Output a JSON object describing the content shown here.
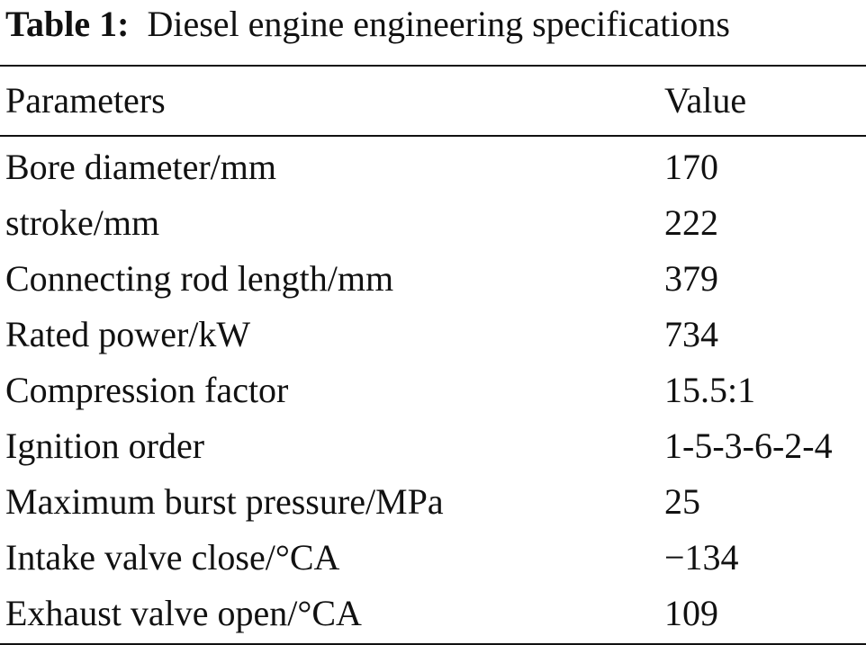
{
  "caption": {
    "label": "Table 1:",
    "title": "Diesel engine engineering specifications"
  },
  "table": {
    "headers": {
      "parameter": "Parameters",
      "value": "Value"
    },
    "rows": [
      {
        "parameter": "Bore diameter/mm",
        "value": "170"
      },
      {
        "parameter": "stroke/mm",
        "value": "222"
      },
      {
        "parameter": "Connecting rod length/mm",
        "value": "379"
      },
      {
        "parameter": "Rated power/kW",
        "value": "734"
      },
      {
        "parameter": "Compression factor",
        "value": "15.5:1"
      },
      {
        "parameter": "Ignition order",
        "value": "1-5-3-6-2-4"
      },
      {
        "parameter": "Maximum burst pressure/MPa",
        "value": "25"
      },
      {
        "parameter": "Intake valve close/°CA",
        "value": "−134"
      },
      {
        "parameter": "Exhaust valve open/°CA",
        "value": "109"
      }
    ]
  }
}
